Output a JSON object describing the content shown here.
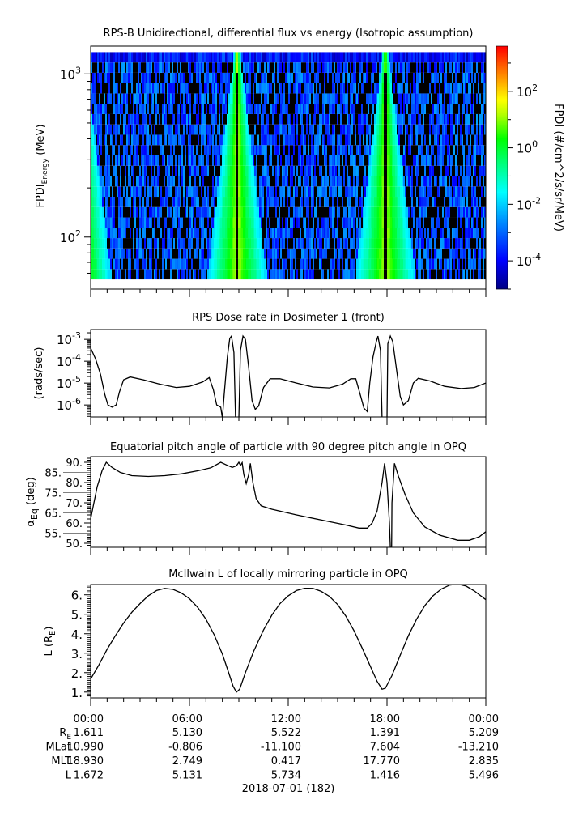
{
  "colors": {
    "line": "#000000",
    "fill_value": "#000000",
    "background": "#ffffff"
  },
  "chart_data": [
    {
      "type": "heatmap",
      "title": "RPS-B  Unidirectional, differential flux vs energy (Isotropic assumption)",
      "ylabel_main": "FPDI",
      "ylabel_sub": "Energy",
      "ylabel_unit": " (MeV)",
      "yscale": "log",
      "ylim": [
        48,
        1480
      ],
      "energy_range_mev": [
        55,
        1360
      ],
      "energy_bins": 22,
      "ytick_labels": [
        {
          "base": "10",
          "exp": "3",
          "value": 1000
        },
        {
          "base": "10",
          "exp": "2",
          "value": 100
        }
      ],
      "xlim_hours": [
        0,
        24
      ],
      "radiation_belt_crossing_hours": [
        -0.6,
        8.85,
        17.85
      ],
      "background_log10_flux_range": [
        -4,
        -2.4
      ],
      "peak_log10_flux": 1.2,
      "colorbar": {
        "label": "FPDI (#/cm^2/s/sr/MeV)",
        "scale": "log",
        "log10_range": [
          -5.0,
          3.6
        ],
        "colormap": "rainbow",
        "tick_labels": [
          {
            "base": "10",
            "exp": "2",
            "value": 2
          },
          {
            "base": "10",
            "exp": "0",
            "value": 0
          },
          {
            "base": "10",
            "exp": "-2",
            "value": -2
          },
          {
            "base": "10",
            "exp": "-4",
            "value": -4
          }
        ]
      }
    },
    {
      "type": "line",
      "title": "RPS  Dose rate in Dosimeter 1 (front)",
      "ylabel": "(rads/sec)",
      "yscale": "log",
      "ylim_log10": [
        -6.55,
        -2.55
      ],
      "ytick_labels": [
        {
          "base": "10",
          "exp": "-3",
          "value": -3
        },
        {
          "base": "10",
          "exp": "-4",
          "value": -4
        },
        {
          "base": "10",
          "exp": "-5",
          "value": -5
        },
        {
          "base": "10",
          "exp": "-6",
          "value": -6
        }
      ],
      "series_log10": [
        [
          0,
          -3.4
        ],
        [
          0.3,
          -3.9
        ],
        [
          0.6,
          -4.6
        ],
        [
          0.85,
          -5.5
        ],
        [
          1.05,
          -6.0
        ],
        [
          1.3,
          -6.1
        ],
        [
          1.55,
          -6.0
        ],
        [
          1.75,
          -5.4
        ],
        [
          2.0,
          -4.85
        ],
        [
          2.4,
          -4.72
        ],
        [
          3.2,
          -4.85
        ],
        [
          4.2,
          -5.05
        ],
        [
          5.2,
          -5.2
        ],
        [
          6.0,
          -5.15
        ],
        [
          6.8,
          -4.95
        ],
        [
          7.2,
          -4.75
        ],
        [
          7.45,
          -5.3
        ],
        [
          7.65,
          -6.0
        ],
        [
          7.9,
          -6.1
        ],
        [
          8.0,
          -6.6
        ],
        [
          8.1,
          -5.6
        ],
        [
          8.3,
          -3.8
        ],
        [
          8.45,
          -2.95
        ],
        [
          8.55,
          -2.85
        ],
        [
          8.7,
          -3.6
        ],
        [
          8.8,
          -6.6
        ],
        [
          9.0,
          -6.6
        ],
        [
          9.1,
          -3.5
        ],
        [
          9.25,
          -2.85
        ],
        [
          9.4,
          -3.0
        ],
        [
          9.6,
          -4.3
        ],
        [
          9.8,
          -5.8
        ],
        [
          10.0,
          -6.2
        ],
        [
          10.2,
          -6.05
        ],
        [
          10.5,
          -5.2
        ],
        [
          10.9,
          -4.8
        ],
        [
          11.5,
          -4.8
        ],
        [
          12.5,
          -5.0
        ],
        [
          13.5,
          -5.18
        ],
        [
          14.5,
          -5.22
        ],
        [
          15.3,
          -5.05
        ],
        [
          15.8,
          -4.8
        ],
        [
          16.1,
          -4.8
        ],
        [
          16.4,
          -5.6
        ],
        [
          16.6,
          -6.15
        ],
        [
          16.8,
          -6.3
        ],
        [
          16.95,
          -5.0
        ],
        [
          17.15,
          -3.8
        ],
        [
          17.35,
          -3.1
        ],
        [
          17.45,
          -2.85
        ],
        [
          17.6,
          -3.5
        ],
        [
          17.7,
          -6.6
        ],
        [
          18.0,
          -6.6
        ],
        [
          18.05,
          -3.2
        ],
        [
          18.2,
          -2.85
        ],
        [
          18.35,
          -3.1
        ],
        [
          18.6,
          -4.5
        ],
        [
          18.8,
          -5.6
        ],
        [
          19.0,
          -6.0
        ],
        [
          19.3,
          -5.8
        ],
        [
          19.6,
          -5.0
        ],
        [
          19.9,
          -4.78
        ],
        [
          20.6,
          -4.9
        ],
        [
          21.5,
          -5.15
        ],
        [
          22.5,
          -5.25
        ],
        [
          23.3,
          -5.2
        ],
        [
          24.0,
          -5.0
        ]
      ]
    },
    {
      "type": "line",
      "title": "Equatorial pitch angle of particle with 90 degree pitch angle in OPQ",
      "ylabel_main": "α",
      "ylabel_sub": "Eq",
      "ylabel_unit": " (deg)",
      "ylim": [
        48,
        92.8
      ],
      "ytick_labels": [
        "90.",
        "85.",
        "80.",
        "75.",
        "70.",
        "65.",
        "60.",
        "55.",
        "50."
      ],
      "series": [
        [
          0,
          62
        ],
        [
          0.15,
          68
        ],
        [
          0.4,
          78
        ],
        [
          0.7,
          86
        ],
        [
          0.95,
          90
        ],
        [
          1.3,
          87.5
        ],
        [
          1.8,
          85
        ],
        [
          2.5,
          83.4
        ],
        [
          3.5,
          83
        ],
        [
          4.5,
          83.4
        ],
        [
          5.5,
          84.3
        ],
        [
          6.5,
          85.8
        ],
        [
          7.3,
          87.3
        ],
        [
          7.9,
          90
        ],
        [
          8.3,
          88.5
        ],
        [
          8.6,
          87.5
        ],
        [
          8.85,
          88.3
        ],
        [
          9.0,
          90
        ],
        [
          9.1,
          88.5
        ],
        [
          9.2,
          89.8
        ],
        [
          9.3,
          84
        ],
        [
          9.45,
          79.5
        ],
        [
          9.6,
          84
        ],
        [
          9.7,
          89.5
        ],
        [
          9.85,
          80
        ],
        [
          10.05,
          72
        ],
        [
          10.35,
          68.5
        ],
        [
          11,
          66.8
        ],
        [
          12.5,
          64
        ],
        [
          14,
          61.5
        ],
        [
          15.5,
          59
        ],
        [
          16.3,
          57.5
        ],
        [
          16.8,
          57.5
        ],
        [
          17.1,
          60
        ],
        [
          17.4,
          66
        ],
        [
          17.7,
          80
        ],
        [
          17.85,
          89.5
        ],
        [
          18.0,
          80
        ],
        [
          18.15,
          60
        ],
        [
          18.2,
          48
        ],
        [
          18.28,
          48
        ],
        [
          18.3,
          70
        ],
        [
          18.45,
          89.5
        ],
        [
          18.7,
          83
        ],
        [
          19.1,
          74
        ],
        [
          19.6,
          65
        ],
        [
          20.3,
          58
        ],
        [
          21.2,
          54
        ],
        [
          22.3,
          51.5
        ],
        [
          23.0,
          51.5
        ],
        [
          23.6,
          53.2
        ],
        [
          24,
          55.7
        ]
      ]
    },
    {
      "type": "line",
      "title": "McIlwain L of locally mirroring particle in OPQ",
      "ylabel_main": "L (R",
      "ylabel_sub": "E",
      "ylabel_unit": ")",
      "ylim": [
        0.7,
        6.53
      ],
      "ytick_labels": [
        "6.",
        "5.",
        "4.",
        "3.",
        "2.",
        "1."
      ],
      "series": [
        [
          0,
          1.67
        ],
        [
          0.5,
          2.4
        ],
        [
          1,
          3.2
        ],
        [
          1.5,
          3.9
        ],
        [
          2,
          4.55
        ],
        [
          2.5,
          5.1
        ],
        [
          3,
          5.55
        ],
        [
          3.5,
          5.95
        ],
        [
          4,
          6.22
        ],
        [
          4.5,
          6.33
        ],
        [
          5,
          6.28
        ],
        [
          5.5,
          6.1
        ],
        [
          6,
          5.8
        ],
        [
          6.5,
          5.35
        ],
        [
          7,
          4.75
        ],
        [
          7.5,
          3.95
        ],
        [
          8,
          2.95
        ],
        [
          8.4,
          1.95
        ],
        [
          8.65,
          1.3
        ],
        [
          8.85,
          1.0
        ],
        [
          9.05,
          1.15
        ],
        [
          9.4,
          2.0
        ],
        [
          9.9,
          3.1
        ],
        [
          10.5,
          4.2
        ],
        [
          11,
          4.95
        ],
        [
          11.5,
          5.55
        ],
        [
          12,
          5.95
        ],
        [
          12.5,
          6.22
        ],
        [
          13,
          6.34
        ],
        [
          13.5,
          6.33
        ],
        [
          14,
          6.18
        ],
        [
          14.5,
          5.92
        ],
        [
          15,
          5.5
        ],
        [
          15.5,
          4.9
        ],
        [
          16,
          4.15
        ],
        [
          16.5,
          3.25
        ],
        [
          17,
          2.3
        ],
        [
          17.4,
          1.55
        ],
        [
          17.7,
          1.15
        ],
        [
          17.9,
          1.2
        ],
        [
          18.3,
          1.85
        ],
        [
          18.8,
          2.9
        ],
        [
          19.3,
          3.9
        ],
        [
          19.8,
          4.75
        ],
        [
          20.3,
          5.45
        ],
        [
          20.8,
          5.95
        ],
        [
          21.3,
          6.3
        ],
        [
          21.8,
          6.5
        ],
        [
          22.3,
          6.55
        ],
        [
          22.8,
          6.45
        ],
        [
          23.3,
          6.2
        ],
        [
          24,
          5.75
        ]
      ]
    }
  ],
  "xaxis": {
    "tick_labels": [
      "00:00",
      "06:00",
      "12:00",
      "18:00",
      "00:00"
    ],
    "ephemeris": [
      {
        "label": "R",
        "label_sub": "E",
        "values": [
          "1.611",
          "5.130",
          "5.522",
          "1.391",
          "5.209"
        ]
      },
      {
        "label": "MLat",
        "label_sub": "",
        "values": [
          "10.990",
          "-0.806",
          "-11.100",
          "7.604",
          "-13.210"
        ]
      },
      {
        "label": "MLT",
        "label_sub": "",
        "values": [
          "18.930",
          "2.749",
          "0.417",
          "17.770",
          "2.835"
        ]
      },
      {
        "label": "L",
        "label_sub": "",
        "values": [
          "1.672",
          "5.131",
          "5.734",
          "1.416",
          "5.496"
        ]
      }
    ],
    "date_label": "2018-07-01 (182)"
  }
}
